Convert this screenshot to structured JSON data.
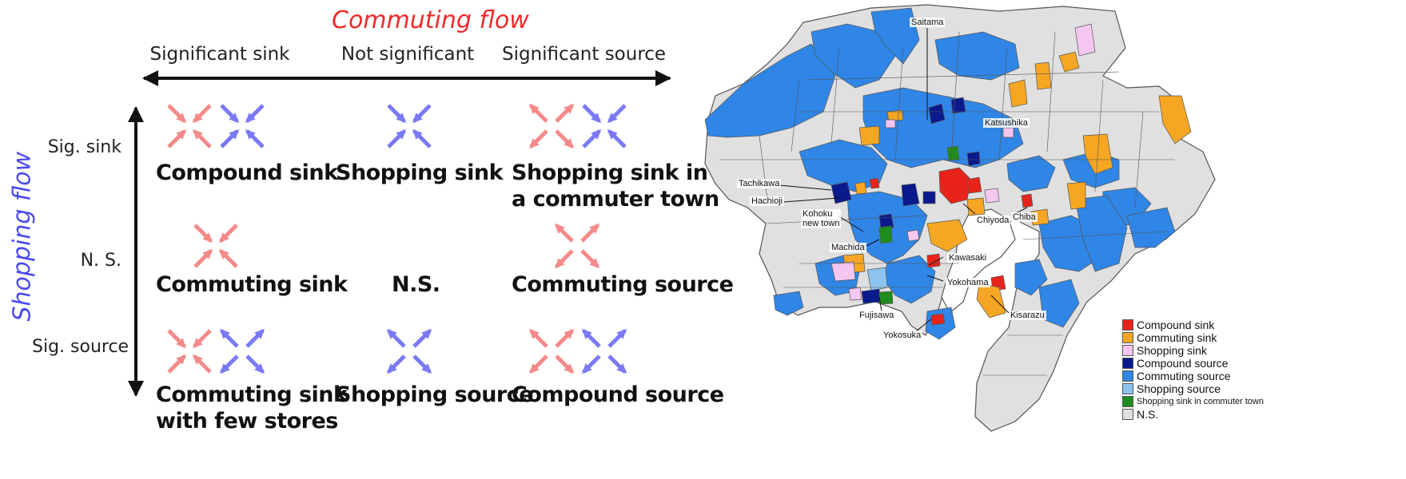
{
  "diagram": {
    "commuting_title": "Commuting flow",
    "shopping_title": "Shopping flow",
    "columns": [
      "Significant sink",
      "Not significant",
      "Significant source"
    ],
    "rows": [
      "Sig. sink",
      "N. S.",
      "Sig. source"
    ],
    "cells": [
      {
        "label": "Compound sink",
        "arrows": [
          "commuting-sink",
          "shopping-sink"
        ]
      },
      {
        "label": "Shopping sink",
        "arrows": [
          "shopping-sink"
        ]
      },
      {
        "label": "Shopping sink in a commuter town",
        "line1": "Shopping sink in",
        "line2": "a commuter town",
        "arrows": [
          "commuting-source",
          "shopping-sink"
        ]
      },
      {
        "label": "Commuting sink",
        "arrows": [
          "commuting-sink"
        ]
      },
      {
        "label": "N.S.",
        "arrows": []
      },
      {
        "label": "Commuting source",
        "arrows": [
          "commuting-source"
        ]
      },
      {
        "label": "Commuting sink with few stores",
        "line1": "Commuting sink",
        "line2": "with few stores",
        "arrows": [
          "commuting-sink",
          "shopping-source"
        ]
      },
      {
        "label": "Shopping source",
        "arrows": [
          "shopping-source"
        ]
      },
      {
        "label": "Compound source",
        "arrows": [
          "commuting-source",
          "shopping-source"
        ]
      }
    ],
    "colors": {
      "commuting": "#f58a8a",
      "shopping": "#7a7af5",
      "axis": "#111111"
    }
  },
  "map": {
    "place_labels": [
      "Saitama",
      "Katsushika",
      "Tachikawa",
      "Hachioji",
      "Kohoku new town",
      "Chiyoda",
      "Chiba",
      "Machida",
      "Kawasaki",
      "Yokohama",
      "Fujisawa",
      "Kisarazu",
      "Yokosuka"
    ],
    "kohoku_line1": "Kohoku",
    "kohoku_line2": "new town",
    "legend": [
      {
        "label": "Compound sink",
        "color": "#e8241a"
      },
      {
        "label": "Commuting sink",
        "color": "#f6a623"
      },
      {
        "label": "Shopping sink",
        "color": "#f5c6f0"
      },
      {
        "label": "Compound source",
        "color": "#0a1a8c"
      },
      {
        "label": "Commuting source",
        "color": "#2f86e6"
      },
      {
        "label": "Shopping source",
        "color": "#8cc4ee"
      },
      {
        "label": "Shopping sink in commuter town",
        "color": "#1e8c1e"
      },
      {
        "label": "N.S.",
        "color": "#e0e0e0"
      }
    ],
    "colors": {
      "land": "#e0e0e0",
      "border": "#555555",
      "sea": "#ffffff"
    }
  }
}
